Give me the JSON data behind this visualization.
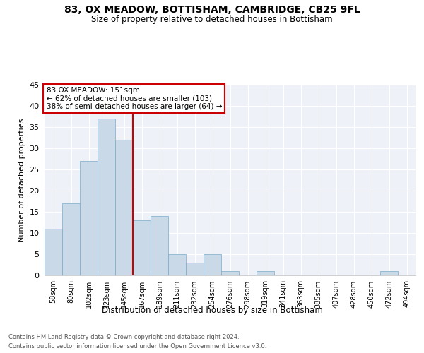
{
  "title_line1": "83, OX MEADOW, BOTTISHAM, CAMBRIDGE, CB25 9FL",
  "title_line2": "Size of property relative to detached houses in Bottisham",
  "xlabel": "Distribution of detached houses by size in Bottisham",
  "ylabel": "Number of detached properties",
  "bin_labels": [
    "58sqm",
    "80sqm",
    "102sqm",
    "123sqm",
    "145sqm",
    "167sqm",
    "189sqm",
    "211sqm",
    "232sqm",
    "254sqm",
    "276sqm",
    "298sqm",
    "319sqm",
    "341sqm",
    "363sqm",
    "385sqm",
    "407sqm",
    "428sqm",
    "450sqm",
    "472sqm",
    "494sqm"
  ],
  "bar_values": [
    11,
    17,
    27,
    37,
    32,
    13,
    14,
    5,
    3,
    5,
    1,
    0,
    1,
    0,
    0,
    0,
    0,
    0,
    0,
    1,
    0
  ],
  "bar_color": "#c9d9e8",
  "bar_edge_color": "#7aaac8",
  "vline_color": "#cc0000",
  "annotation_box_edge_color": "#cc0000",
  "annotation_box_face_color": "#ffffff",
  "property_line_label": "83 OX MEADOW: 151sqm",
  "annotation_line1": "← 62% of detached houses are smaller (103)",
  "annotation_line2": "38% of semi-detached houses are larger (64) →",
  "ylim": [
    0,
    45
  ],
  "yticks": [
    0,
    5,
    10,
    15,
    20,
    25,
    30,
    35,
    40,
    45
  ],
  "background_color": "#eef2f8",
  "footer_line1": "Contains HM Land Registry data © Crown copyright and database right 2024.",
  "footer_line2": "Contains public sector information licensed under the Open Government Licence v3.0."
}
